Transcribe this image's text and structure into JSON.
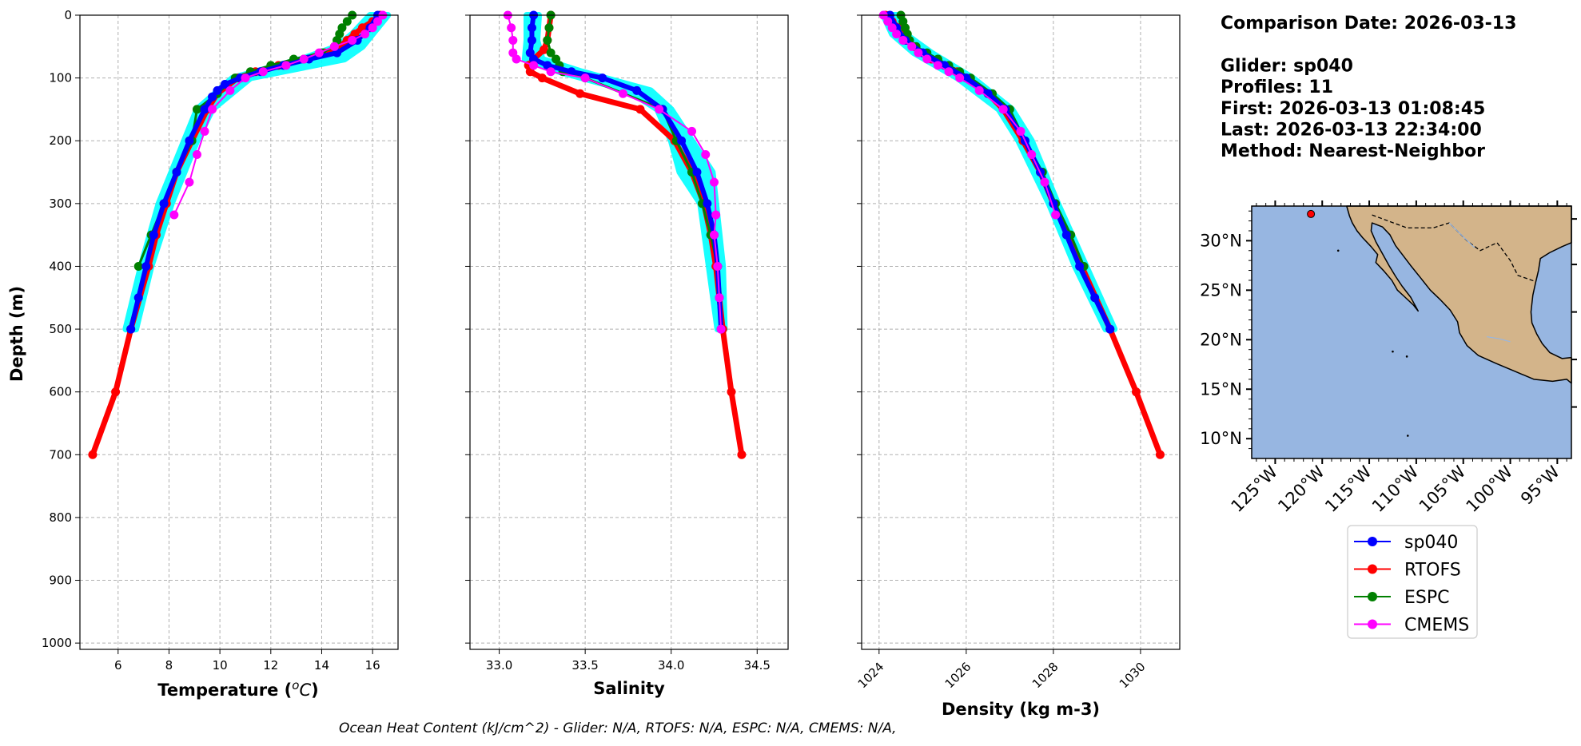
{
  "colors": {
    "sp040": "#0000ff",
    "RTOFS": "#ff0000",
    "ESPC": "#008000",
    "CMEMS": "#ff00ff",
    "glider_band": "#00ffff",
    "ocean": "#97b6e1",
    "land": "#d3b48a"
  },
  "info": {
    "lines": [
      "Comparison Date: 2026-03-13",
      "",
      "Glider: sp040",
      "Profiles: 11",
      "First: 2026-03-13 01:08:45",
      "Last: 2026-03-13 22:34:00",
      "Method: Nearest-Neighbor"
    ]
  },
  "footer": "Ocean Heat Content (kJ/cm^2) - Glider: N/A,  RTOFS: N/A,  ESPC: N/A,  CMEMS: N/A,",
  "legend": {
    "entries": [
      "sp040",
      "RTOFS",
      "ESPC",
      "CMEMS"
    ]
  },
  "map": {
    "lat_ticks": [
      "30°N",
      "25°N",
      "20°N",
      "15°N",
      "10°N"
    ],
    "lon_ticks": [
      "125°W",
      "120°W",
      "115°W",
      "110°W",
      "105°W",
      "100°W",
      "95°W"
    ],
    "lon_range": [
      -127.5,
      -93.5
    ],
    "lat_range": [
      8,
      33.5
    ],
    "glider_position": {
      "lon": -121.2,
      "lat": 32.7
    }
  },
  "chart_data": [
    {
      "type": "line",
      "xlabel": "Temperature (°C)",
      "ylabel": "Depth (m)",
      "xlim": [
        4.5,
        17
      ],
      "ylim": [
        1010,
        0
      ],
      "xticks": [
        6,
        8,
        10,
        12,
        14,
        16
      ],
      "yticks": [
        0,
        100,
        200,
        300,
        400,
        500,
        600,
        700,
        800,
        900,
        1000
      ],
      "grid": true,
      "series": [
        {
          "name": "sp040",
          "depth": [
            0,
            20,
            40,
            60,
            70,
            80,
            90,
            100,
            110,
            120,
            130,
            150,
            200,
            250,
            300,
            350,
            400,
            450,
            500
          ],
          "values": [
            16.2,
            15.9,
            15.4,
            14.6,
            13.5,
            12.5,
            11.6,
            10.8,
            10.2,
            9.9,
            9.7,
            9.4,
            8.8,
            8.3,
            7.8,
            7.4,
            7.1,
            6.8,
            6.5
          ]
        },
        {
          "name": "RTOFS",
          "depth": [
            0,
            10,
            20,
            30,
            40,
            50,
            60,
            70,
            80,
            90,
            100,
            125,
            150,
            200,
            250,
            300,
            350,
            400,
            500,
            600,
            700
          ],
          "values": [
            16.3,
            16.0,
            15.6,
            15.3,
            15.0,
            14.7,
            14.1,
            13.3,
            12.3,
            11.4,
            10.7,
            9.9,
            9.5,
            8.9,
            8.3,
            7.9,
            7.5,
            7.2,
            6.5,
            5.9,
            5.0
          ]
        },
        {
          "name": "ESPC",
          "depth": [
            0,
            10,
            20,
            30,
            40,
            50,
            60,
            70,
            80,
            90,
            100,
            125,
            150,
            200,
            250,
            300,
            350,
            400
          ],
          "values": [
            15.2,
            15.0,
            14.8,
            14.7,
            14.6,
            14.5,
            14.0,
            12.9,
            12.0,
            11.2,
            10.6,
            9.9,
            9.1,
            8.9,
            8.3,
            7.8,
            7.3,
            6.8
          ]
        },
        {
          "name": "CMEMS",
          "depth": [
            0,
            10,
            20,
            30,
            40,
            50,
            60,
            70,
            80,
            90,
            100,
            120,
            150,
            185,
            222,
            266,
            318
          ],
          "values": [
            16.4,
            16.2,
            16.0,
            15.7,
            15.2,
            14.5,
            13.9,
            13.3,
            12.6,
            11.7,
            11.0,
            10.4,
            9.7,
            9.4,
            9.1,
            8.8,
            8.2
          ]
        }
      ],
      "glider_band": {
        "depth": [
          0,
          30,
          50,
          70,
          100,
          150,
          200,
          300,
          400,
          500
        ],
        "min": [
          15.9,
          15.2,
          14.6,
          13.2,
          10.5,
          9.1,
          8.6,
          7.6,
          6.9,
          6.3
        ],
        "max": [
          16.6,
          16.0,
          15.6,
          14.9,
          11.2,
          9.7,
          9.1,
          8.1,
          7.3,
          6.7
        ]
      }
    },
    {
      "type": "line",
      "xlabel": "Salinity",
      "xlim": [
        32.83,
        34.68
      ],
      "ylim": [
        1010,
        0
      ],
      "xticks": [
        33.0,
        33.5,
        34.0,
        34.5
      ],
      "xtick_labels": [
        "33.0",
        "33.5",
        "34.0",
        "34.5"
      ],
      "grid": true,
      "series": [
        {
          "name": "sp040",
          "depth": [
            0,
            20,
            40,
            60,
            70,
            80,
            90,
            100,
            120,
            150,
            200,
            250,
            300,
            350,
            400,
            450,
            500
          ],
          "values": [
            33.2,
            33.19,
            33.19,
            33.18,
            33.2,
            33.28,
            33.42,
            33.6,
            33.8,
            33.95,
            34.06,
            34.15,
            34.21,
            34.25,
            34.27,
            34.28,
            34.29
          ]
        },
        {
          "name": "RTOFS",
          "depth": [
            0,
            20,
            40,
            55,
            70,
            80,
            90,
            100,
            125,
            150,
            200,
            250,
            300,
            350,
            400,
            500,
            600,
            700
          ],
          "values": [
            33.3,
            33.29,
            33.28,
            33.26,
            33.2,
            33.17,
            33.18,
            33.25,
            33.47,
            33.82,
            34.02,
            34.12,
            34.19,
            34.23,
            34.26,
            34.3,
            34.35,
            34.41
          ]
        },
        {
          "name": "ESPC",
          "depth": [
            0,
            20,
            40,
            60,
            70,
            80,
            90,
            100,
            150,
            200,
            250,
            300,
            350,
            400
          ],
          "values": [
            33.3,
            33.29,
            33.28,
            33.3,
            33.33,
            33.35,
            33.37,
            33.5,
            33.95,
            34.03,
            34.12,
            34.18,
            34.23,
            34.27
          ]
        },
        {
          "name": "CMEMS",
          "depth": [
            0,
            20,
            40,
            60,
            70,
            80,
            90,
            100,
            125,
            150,
            185,
            222,
            266,
            318,
            350,
            400,
            450,
            500
          ],
          "values": [
            33.05,
            33.07,
            33.08,
            33.08,
            33.1,
            33.2,
            33.3,
            33.5,
            33.72,
            33.93,
            34.12,
            34.2,
            34.25,
            34.26,
            34.25,
            34.27,
            34.28,
            34.29
          ]
        }
      ],
      "glider_band": {
        "depth": [
          0,
          40,
          70,
          90,
          120,
          150,
          200,
          250,
          300,
          400,
          500
        ],
        "min": [
          33.16,
          33.16,
          33.15,
          33.35,
          33.75,
          33.92,
          34.0,
          34.05,
          34.17,
          34.22,
          34.27
        ],
        "max": [
          33.23,
          33.22,
          33.25,
          33.48,
          33.88,
          34.0,
          34.12,
          34.24,
          34.26,
          34.3,
          34.31
        ]
      }
    },
    {
      "type": "line",
      "xlabel": "Density (kg m-3)",
      "xlim": [
        1023.6,
        1030.9
      ],
      "ylim": [
        1010,
        0
      ],
      "xticks": [
        1024,
        1026,
        1028,
        1030
      ],
      "xtick_labels": [
        "1024",
        "1026",
        "1028",
        "1030"
      ],
      "grid": true,
      "series": [
        {
          "name": "sp040",
          "depth": [
            0,
            20,
            40,
            60,
            80,
            100,
            125,
            150,
            200,
            250,
            300,
            350,
            400,
            450,
            500
          ],
          "values": [
            1024.25,
            1024.4,
            1024.6,
            1025.0,
            1025.5,
            1026.0,
            1026.5,
            1026.9,
            1027.35,
            1027.7,
            1028.0,
            1028.3,
            1028.6,
            1028.95,
            1029.3
          ]
        },
        {
          "name": "RTOFS",
          "depth": [
            0,
            10,
            20,
            30,
            40,
            50,
            60,
            70,
            80,
            90,
            100,
            125,
            150,
            200,
            250,
            300,
            350,
            400,
            500,
            600,
            700
          ],
          "values": [
            1024.15,
            1024.3,
            1024.45,
            1024.55,
            1024.65,
            1024.8,
            1025.0,
            1025.2,
            1025.5,
            1025.8,
            1026.0,
            1026.5,
            1026.85,
            1027.3,
            1027.7,
            1028.0,
            1028.35,
            1028.65,
            1029.3,
            1029.9,
            1030.45
          ]
        },
        {
          "name": "ESPC",
          "depth": [
            0,
            10,
            20,
            30,
            40,
            50,
            60,
            70,
            80,
            90,
            100,
            125,
            150,
            200,
            250,
            300,
            350,
            400
          ],
          "values": [
            1024.5,
            1024.55,
            1024.6,
            1024.65,
            1024.7,
            1024.85,
            1025.1,
            1025.35,
            1025.6,
            1025.85,
            1026.1,
            1026.6,
            1027.0,
            1027.35,
            1027.75,
            1028.05,
            1028.4,
            1028.7
          ]
        },
        {
          "name": "CMEMS",
          "depth": [
            0,
            10,
            20,
            30,
            40,
            50,
            60,
            70,
            80,
            90,
            100,
            120,
            150,
            185,
            222,
            266,
            318
          ],
          "values": [
            1024.1,
            1024.2,
            1024.3,
            1024.4,
            1024.55,
            1024.75,
            1024.9,
            1025.1,
            1025.35,
            1025.6,
            1025.85,
            1026.3,
            1026.85,
            1027.25,
            1027.5,
            1027.8,
            1028.05
          ]
        }
      ],
      "glider_band": {
        "depth": [
          0,
          30,
          60,
          100,
          150,
          200,
          300,
          400,
          500
        ],
        "min": [
          1024.1,
          1024.3,
          1024.8,
          1025.8,
          1026.75,
          1027.2,
          1027.9,
          1028.5,
          1029.2
        ],
        "max": [
          1024.4,
          1024.6,
          1025.2,
          1026.15,
          1027.05,
          1027.5,
          1028.1,
          1028.75,
          1029.4
        ]
      }
    }
  ]
}
